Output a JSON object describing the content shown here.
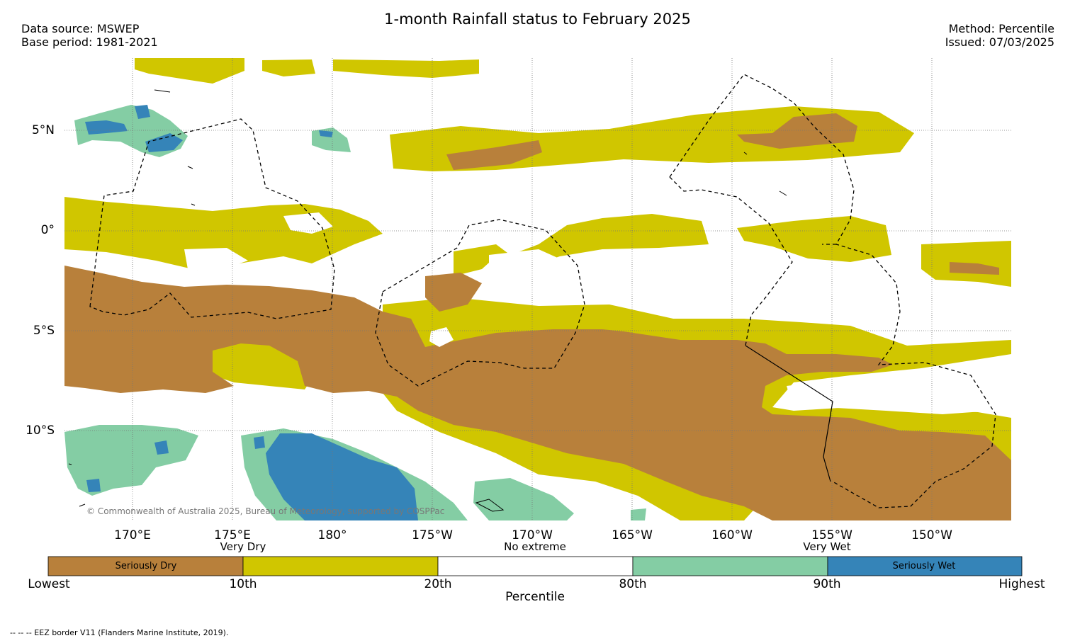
{
  "title": "1-month Rainfall status to February 2025",
  "data_source": "Data source: MSWEP",
  "base_period": "Base period: 1981-2021",
  "method": "Method: Percentile",
  "issued": "Issued: 07/03/2025",
  "copyright": "© Commonwealth of Australia 2025, Bureau of Meteorology, supported by COSPPac",
  "footer": "--  --  -- EEZ border V11 (Flanders Marine Institute, 2019).",
  "map": {
    "lat_labels": [
      "5°N",
      "0°",
      "5°S",
      "10°S"
    ],
    "lon_labels": [
      "170°E",
      "175°E",
      "180°",
      "175°W",
      "170°W",
      "165°W",
      "160°W",
      "155°W",
      "150°W"
    ],
    "extent": {
      "lon_min": 166.7,
      "lon_max": 214.2,
      "lat_min": -14.5,
      "lat_max": 8.7
    },
    "class_colors": {
      "seriously_dry": "#b8803b",
      "very_dry": "#d0c600",
      "no_extreme": "#ffffff",
      "very_wet": "#84cda4",
      "seriously_wet": "#3584b8"
    }
  },
  "legend": {
    "categories": [
      "Very Dry",
      "No extreme",
      "Very Wet"
    ],
    "segments": [
      {
        "label": "Seriously Dry",
        "color": "#b8803b"
      },
      {
        "label": "",
        "color": "#d0c600"
      },
      {
        "label": "",
        "color": "#ffffff"
      },
      {
        "label": "",
        "color": "#84cda4"
      },
      {
        "label": "Seriously Wet",
        "color": "#3584b8"
      }
    ],
    "percentiles": [
      "Lowest",
      "10th",
      "20th",
      "80th",
      "90th",
      "Highest"
    ],
    "axis_title": "Percentile"
  }
}
